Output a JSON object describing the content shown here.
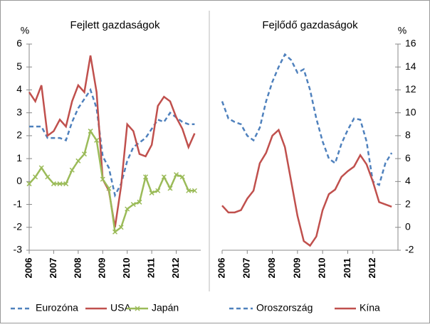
{
  "chart_data": [
    {
      "type": "line",
      "title": "Fejlett gazdaságok",
      "ylabel": "%",
      "yaxis": "left",
      "x": [
        2006,
        2006.25,
        2006.5,
        2006.75,
        2007,
        2007.25,
        2007.5,
        2007.75,
        2008,
        2008.25,
        2008.5,
        2008.75,
        2009,
        2009.25,
        2009.5,
        2009.75,
        2010,
        2010.25,
        2010.5,
        2010.75,
        2011,
        2011.25,
        2011.5,
        2011.75,
        2012,
        2012.25,
        2012.5,
        2012.75
      ],
      "xlim": [
        2006,
        2013
      ],
      "xticks": [
        2006,
        2007,
        2008,
        2009,
        2010,
        2011,
        2012
      ],
      "ylim": [
        -3,
        6
      ],
      "yticks": [
        -3,
        -2,
        -1,
        0,
        1,
        2,
        3,
        4,
        5,
        6
      ],
      "series": [
        {
          "name": "Eurozóna",
          "color": "#4f81bd",
          "style": "dashed",
          "values": [
            2.4,
            2.4,
            2.4,
            1.9,
            1.9,
            1.9,
            1.8,
            2.6,
            3.2,
            3.6,
            4.0,
            3.2,
            1.1,
            0.6,
            -0.6,
            -0.1,
            0.9,
            1.5,
            1.7,
            1.9,
            2.3,
            2.7,
            2.6,
            3.0,
            2.8,
            2.6,
            2.5,
            2.5
          ]
        },
        {
          "name": "USA",
          "color": "#c0504d",
          "style": "solid",
          "values": [
            3.9,
            3.5,
            4.2,
            2.0,
            2.2,
            2.7,
            2.4,
            3.5,
            4.2,
            3.9,
            5.5,
            3.9,
            0.1,
            -0.4,
            -2.0,
            -0.2,
            2.5,
            2.2,
            1.2,
            1.1,
            1.6,
            3.3,
            3.7,
            3.5,
            2.8,
            2.3,
            1.5,
            2.1
          ]
        },
        {
          "name": "Japán",
          "color": "#9bbb59",
          "style": "solid",
          "marker": "x",
          "values": [
            -0.1,
            0.2,
            0.6,
            0.2,
            -0.1,
            -0.1,
            -0.1,
            0.5,
            0.9,
            1.2,
            2.2,
            1.8,
            0.1,
            -0.3,
            -2.2,
            -2.0,
            -1.2,
            -1.0,
            -0.9,
            0.2,
            -0.5,
            -0.4,
            0.2,
            -0.3,
            0.3,
            0.2,
            -0.4,
            -0.4
          ]
        }
      ]
    },
    {
      "type": "line",
      "title": "Fejlődő gazdaságok",
      "ylabel": "%",
      "yaxis": "right",
      "x": [
        2006,
        2006.25,
        2006.5,
        2006.75,
        2007,
        2007.25,
        2007.5,
        2007.75,
        2008,
        2008.25,
        2008.5,
        2008.75,
        2009,
        2009.25,
        2009.5,
        2009.75,
        2010,
        2010.25,
        2010.5,
        2010.75,
        2011,
        2011.25,
        2011.5,
        2011.75,
        2012,
        2012.25,
        2012.5,
        2012.75
      ],
      "xlim": [
        2006,
        2013
      ],
      "xticks": [
        2006,
        2007,
        2008,
        2009,
        2010,
        2011,
        2012
      ],
      "ylim": [
        -2,
        16
      ],
      "yticks": [
        -2,
        0,
        2,
        4,
        6,
        8,
        10,
        12,
        14,
        16
      ],
      "series": [
        {
          "name": "Oroszország",
          "color": "#4f81bd",
          "style": "dashed",
          "values": [
            11,
            9.5,
            9.2,
            9.0,
            8.0,
            7.6,
            8.7,
            11.0,
            12.7,
            14.0,
            15.1,
            14.6,
            13.5,
            13.8,
            12.0,
            9.5,
            7.5,
            6.0,
            5.6,
            7.3,
            8.5,
            9.5,
            9.4,
            7.5,
            4.0,
            3.7,
            5.6,
            6.5
          ]
        },
        {
          "name": "Kína",
          "color": "#c0504d",
          "style": "solid",
          "values": [
            1.9,
            1.3,
            1.3,
            1.5,
            2.5,
            3.2,
            5.6,
            6.5,
            8.0,
            8.5,
            7.0,
            4.0,
            1.0,
            -1.2,
            -1.6,
            -0.8,
            1.5,
            2.9,
            3.3,
            4.4,
            4.9,
            5.3,
            6.3,
            5.5,
            4.0,
            2.2,
            2.0,
            1.8
          ]
        }
      ]
    }
  ]
}
